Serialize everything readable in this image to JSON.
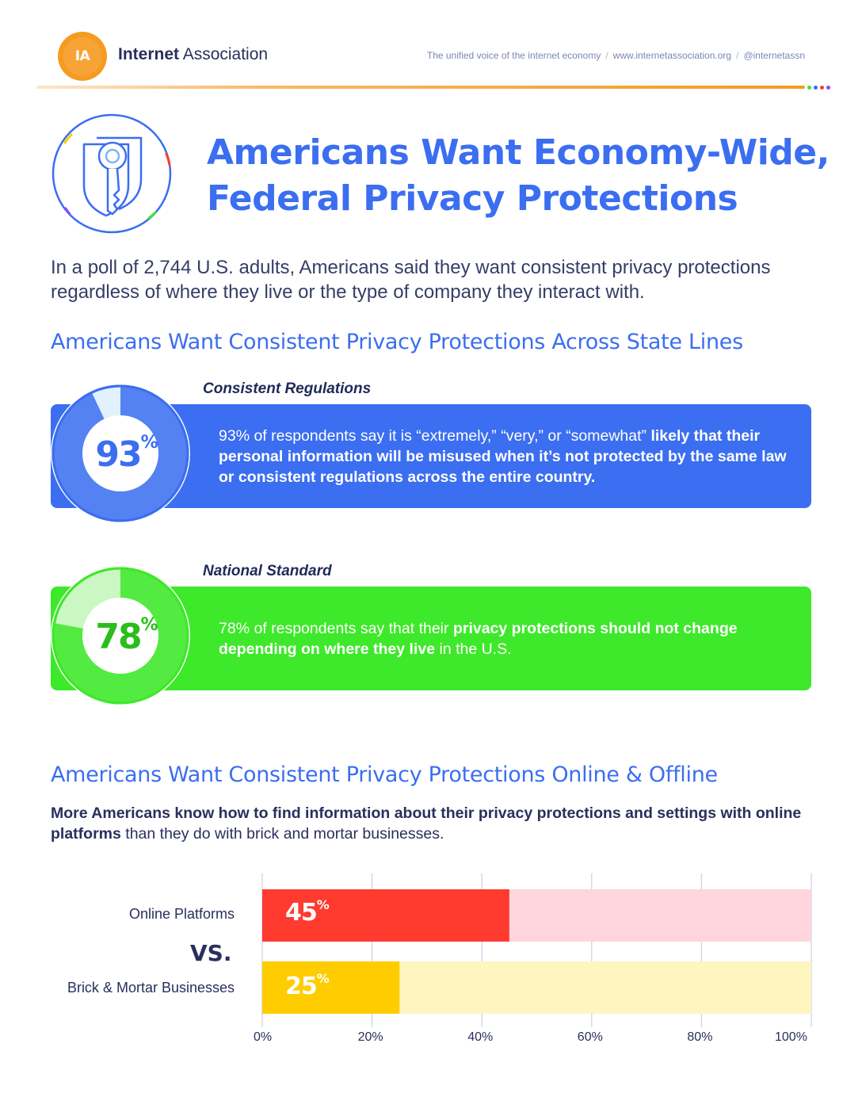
{
  "header": {
    "logo_mark": "IA",
    "logo_name_bold": "Internet",
    "logo_name_rest": " Association",
    "tagline": "The unified voice of the internet economy",
    "website": "www.internetassociation.org",
    "handle": "@internetassn",
    "separator": "/"
  },
  "title": {
    "line1": "Americans Want Economy-Wide,",
    "line2": "Federal Privacy Protections"
  },
  "intro": "In a poll of 2,744 U.S. adults, Americans said they want consistent privacy protections regardless of where they live or the type of company they interact with.",
  "section1": {
    "heading": "Americans Want Consistent Privacy Protections Across State Lines",
    "stats": [
      {
        "label": "Consistent Regulations",
        "percent": 93,
        "number": "93",
        "percent_sign": "%",
        "text_plain": "93% of respondents say it is “extremely,” “very,” or “somewhat” ",
        "text_bold": "likely that their personal information will be misused when it’s not protected by the same law or consistent regulations across the entire country.",
        "text_after": "",
        "color": "#3b6ef0",
        "light_color": "#e3f1fd"
      },
      {
        "label": "National Standard",
        "percent": 78,
        "number": "78",
        "percent_sign": "%",
        "text_plain": "78% of respondents say that their ",
        "text_bold": "privacy protections should not change depending on where they live",
        "text_after": " in the U.S.",
        "color": "#3ee82a",
        "light_color": "#cbf7c3"
      }
    ]
  },
  "section2": {
    "heading": "Americans Want Consistent Privacy Protections Online & Offline",
    "subtext_bold": "More Americans know how to find information about their privacy protections and settings with online platforms",
    "subtext_plain": " than they do with brick and mortar businesses.",
    "vs_label": "VS."
  },
  "chart_data": {
    "type": "bar",
    "orientation": "horizontal",
    "categories": [
      "Online Platforms",
      "Brick & Mortar Businesses"
    ],
    "values": [
      45,
      25
    ],
    "value_labels": [
      "45",
      "25"
    ],
    "value_suffix": "%",
    "xlim": [
      0,
      100
    ],
    "xticks": [
      "0%",
      "20%",
      "40%",
      "60%",
      "80%",
      "100%"
    ],
    "grid": true,
    "colors": [
      "#ff3a2f",
      "#ffcc00"
    ],
    "track_colors": [
      "#ffd6dd",
      "#fff5bf"
    ]
  }
}
